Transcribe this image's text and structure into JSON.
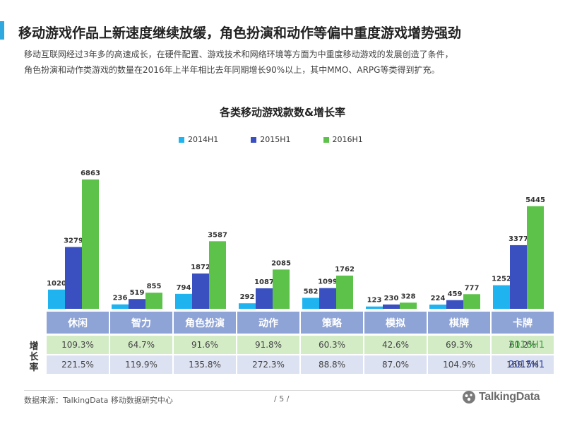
{
  "header": {
    "title": "移动游戏作品上新速度继续放缓，角色扮演和动作等偏中重度游戏增势强劲",
    "subtitle_lines": [
      "移动互联网经过3年多的高速成长，在硬件配置、游戏技术和网络环境等方面为中重度移动游戏的发展创造了条件，",
      "角色扮演和动作类游戏的数量在2016年上半年相比去年同期增长90%以上，其中MMO、ARPG等类得到扩充。"
    ]
  },
  "chart_data": {
    "type": "bar",
    "title": "各类移动游戏款数&增长率",
    "categories": [
      "休闲",
      "智力",
      "角色扮演",
      "动作",
      "策略",
      "模拟",
      "棋牌",
      "卡牌"
    ],
    "series": [
      {
        "name": "2014H1",
        "color": "#1fb4ef",
        "values": [
          1020,
          236,
          794,
          292,
          582,
          123,
          224,
          1252
        ]
      },
      {
        "name": "2015H1",
        "color": "#3a4fc0",
        "values": [
          3279,
          519,
          1872,
          1087,
          1099,
          230,
          459,
          3377
        ]
      },
      {
        "name": "2016H1",
        "color": "#5dc24a",
        "values": [
          6863,
          855,
          3587,
          2085,
          1762,
          328,
          777,
          5445
        ]
      }
    ],
    "growth_rates": {
      "label": "增长率",
      "rows": [
        {
          "name": "2016H1",
          "color": "#3aa63a",
          "values": [
            "109.3%",
            "64.7%",
            "91.6%",
            "91.8%",
            "60.3%",
            "42.6%",
            "69.3%",
            "61.2%"
          ]
        },
        {
          "name": "2015H1",
          "color": "#2b3fa0",
          "values": [
            "221.5%",
            "119.9%",
            "135.8%",
            "272.3%",
            "88.8%",
            "87.0%",
            "104.9%",
            "169.7%"
          ]
        }
      ]
    },
    "ylim": [
      0,
      7500
    ],
    "legend_position": "top-center",
    "grid": false
  },
  "footer": {
    "source": "数据来源：TalkingData  移动数据研究中心",
    "page": "/ 5 /",
    "logo_text": "TalkingData",
    "logo_icon": "talkingdata-logo-icon"
  },
  "colors": {
    "accent": "#2fa8e0",
    "category_bar": "#8fa4d6"
  }
}
